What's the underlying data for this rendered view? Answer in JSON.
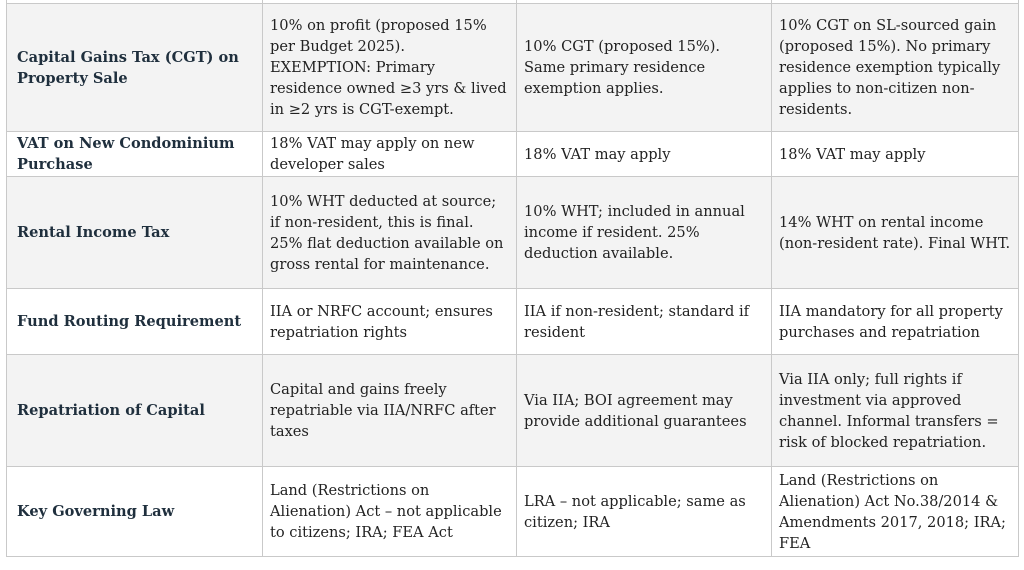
{
  "table": {
    "rows": [
      {
        "label": "",
        "cells": [
          "",
          "",
          ""
        ]
      },
      {
        "label": "Capital Gains Tax (CGT) on Property Sale",
        "cells": [
          "10% on profit (proposed 15% per Budget 2025). EXEMPTION: Primary residence owned ≥3 yrs & lived in ≥2 yrs is CGT-exempt.",
          "10% CGT (proposed 15%). Same primary residence exemption applies.",
          "10% CGT on SL-sourced gain (proposed 15%). No primary residence exemption typically applies to non-citizen non-residents."
        ]
      },
      {
        "label": "VAT on New Condominium Purchase",
        "cells": [
          "18% VAT may apply on new developer sales",
          "18% VAT may apply",
          "18% VAT may apply"
        ]
      },
      {
        "label": "Rental Income Tax",
        "cells": [
          "10% WHT deducted at source; if non-resident, this is final. 25% flat deduction available on gross rental for maintenance.",
          "10% WHT; included in annual income if resident. 25% deduction available.",
          "14% WHT on rental income (non-resident rate). Final WHT."
        ]
      },
      {
        "label": "Fund Routing Requirement",
        "cells": [
          "IIA or NRFC account; ensures repatriation rights",
          "IIA if non-resident; standard if resident",
          "IIA mandatory for all property purchases and repatriation"
        ]
      },
      {
        "label": "Repatriation of Capital",
        "cells": [
          "Capital and gains freely repatriable via IIA/NRFC after taxes",
          "Via IIA; BOI agreement may provide additional guarantees",
          "Via IIA only; full rights if investment via approved channel. Informal transfers = risk of blocked repatriation."
        ]
      },
      {
        "label": "Key Governing Law",
        "cells": [
          "Land (Restrictions on Alienation) Act – not applicable to citizens; IRA; FEA Act",
          "LRA – not applicable; same as citizen; IRA",
          "Land (Restrictions on Alienation) Act No.38/2014 & Amendments 2017, 2018; IRA; FEA"
        ]
      }
    ]
  }
}
